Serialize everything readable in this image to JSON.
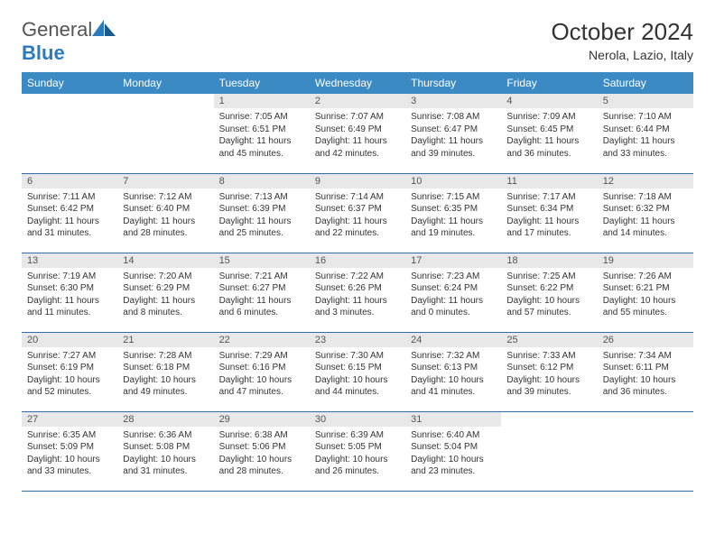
{
  "brand": {
    "name_part1": "General",
    "name_part2": "Blue"
  },
  "title": "October 2024",
  "location": "Nerola, Lazio, Italy",
  "header_color": "#3b8ac4",
  "daynum_bg": "#e8e8e8",
  "border_color": "#2e6fa8",
  "weekdays": [
    "Sunday",
    "Monday",
    "Tuesday",
    "Wednesday",
    "Thursday",
    "Friday",
    "Saturday"
  ],
  "weeks": [
    [
      null,
      null,
      {
        "n": "1",
        "sr": "7:05 AM",
        "ss": "6:51 PM",
        "dh": "11",
        "dm": "45"
      },
      {
        "n": "2",
        "sr": "7:07 AM",
        "ss": "6:49 PM",
        "dh": "11",
        "dm": "42"
      },
      {
        "n": "3",
        "sr": "7:08 AM",
        "ss": "6:47 PM",
        "dh": "11",
        "dm": "39"
      },
      {
        "n": "4",
        "sr": "7:09 AM",
        "ss": "6:45 PM",
        "dh": "11",
        "dm": "36"
      },
      {
        "n": "5",
        "sr": "7:10 AM",
        "ss": "6:44 PM",
        "dh": "11",
        "dm": "33"
      }
    ],
    [
      {
        "n": "6",
        "sr": "7:11 AM",
        "ss": "6:42 PM",
        "dh": "11",
        "dm": "31"
      },
      {
        "n": "7",
        "sr": "7:12 AM",
        "ss": "6:40 PM",
        "dh": "11",
        "dm": "28"
      },
      {
        "n": "8",
        "sr": "7:13 AM",
        "ss": "6:39 PM",
        "dh": "11",
        "dm": "25"
      },
      {
        "n": "9",
        "sr": "7:14 AM",
        "ss": "6:37 PM",
        "dh": "11",
        "dm": "22"
      },
      {
        "n": "10",
        "sr": "7:15 AM",
        "ss": "6:35 PM",
        "dh": "11",
        "dm": "19"
      },
      {
        "n": "11",
        "sr": "7:17 AM",
        "ss": "6:34 PM",
        "dh": "11",
        "dm": "17"
      },
      {
        "n": "12",
        "sr": "7:18 AM",
        "ss": "6:32 PM",
        "dh": "11",
        "dm": "14"
      }
    ],
    [
      {
        "n": "13",
        "sr": "7:19 AM",
        "ss": "6:30 PM",
        "dh": "11",
        "dm": "11"
      },
      {
        "n": "14",
        "sr": "7:20 AM",
        "ss": "6:29 PM",
        "dh": "11",
        "dm": "8"
      },
      {
        "n": "15",
        "sr": "7:21 AM",
        "ss": "6:27 PM",
        "dh": "11",
        "dm": "6"
      },
      {
        "n": "16",
        "sr": "7:22 AM",
        "ss": "6:26 PM",
        "dh": "11",
        "dm": "3"
      },
      {
        "n": "17",
        "sr": "7:23 AM",
        "ss": "6:24 PM",
        "dh": "11",
        "dm": "0"
      },
      {
        "n": "18",
        "sr": "7:25 AM",
        "ss": "6:22 PM",
        "dh": "10",
        "dm": "57"
      },
      {
        "n": "19",
        "sr": "7:26 AM",
        "ss": "6:21 PM",
        "dh": "10",
        "dm": "55"
      }
    ],
    [
      {
        "n": "20",
        "sr": "7:27 AM",
        "ss": "6:19 PM",
        "dh": "10",
        "dm": "52"
      },
      {
        "n": "21",
        "sr": "7:28 AM",
        "ss": "6:18 PM",
        "dh": "10",
        "dm": "49"
      },
      {
        "n": "22",
        "sr": "7:29 AM",
        "ss": "6:16 PM",
        "dh": "10",
        "dm": "47"
      },
      {
        "n": "23",
        "sr": "7:30 AM",
        "ss": "6:15 PM",
        "dh": "10",
        "dm": "44"
      },
      {
        "n": "24",
        "sr": "7:32 AM",
        "ss": "6:13 PM",
        "dh": "10",
        "dm": "41"
      },
      {
        "n": "25",
        "sr": "7:33 AM",
        "ss": "6:12 PM",
        "dh": "10",
        "dm": "39"
      },
      {
        "n": "26",
        "sr": "7:34 AM",
        "ss": "6:11 PM",
        "dh": "10",
        "dm": "36"
      }
    ],
    [
      {
        "n": "27",
        "sr": "6:35 AM",
        "ss": "5:09 PM",
        "dh": "10",
        "dm": "33"
      },
      {
        "n": "28",
        "sr": "6:36 AM",
        "ss": "5:08 PM",
        "dh": "10",
        "dm": "31"
      },
      {
        "n": "29",
        "sr": "6:38 AM",
        "ss": "5:06 PM",
        "dh": "10",
        "dm": "28"
      },
      {
        "n": "30",
        "sr": "6:39 AM",
        "ss": "5:05 PM",
        "dh": "10",
        "dm": "26"
      },
      {
        "n": "31",
        "sr": "6:40 AM",
        "ss": "5:04 PM",
        "dh": "10",
        "dm": "23"
      },
      null,
      null
    ]
  ],
  "labels": {
    "sunrise": "Sunrise:",
    "sunset": "Sunset:",
    "daylight_prefix": "Daylight:",
    "hours_word": "hours",
    "and_word": "and",
    "minutes_word": "minutes."
  }
}
